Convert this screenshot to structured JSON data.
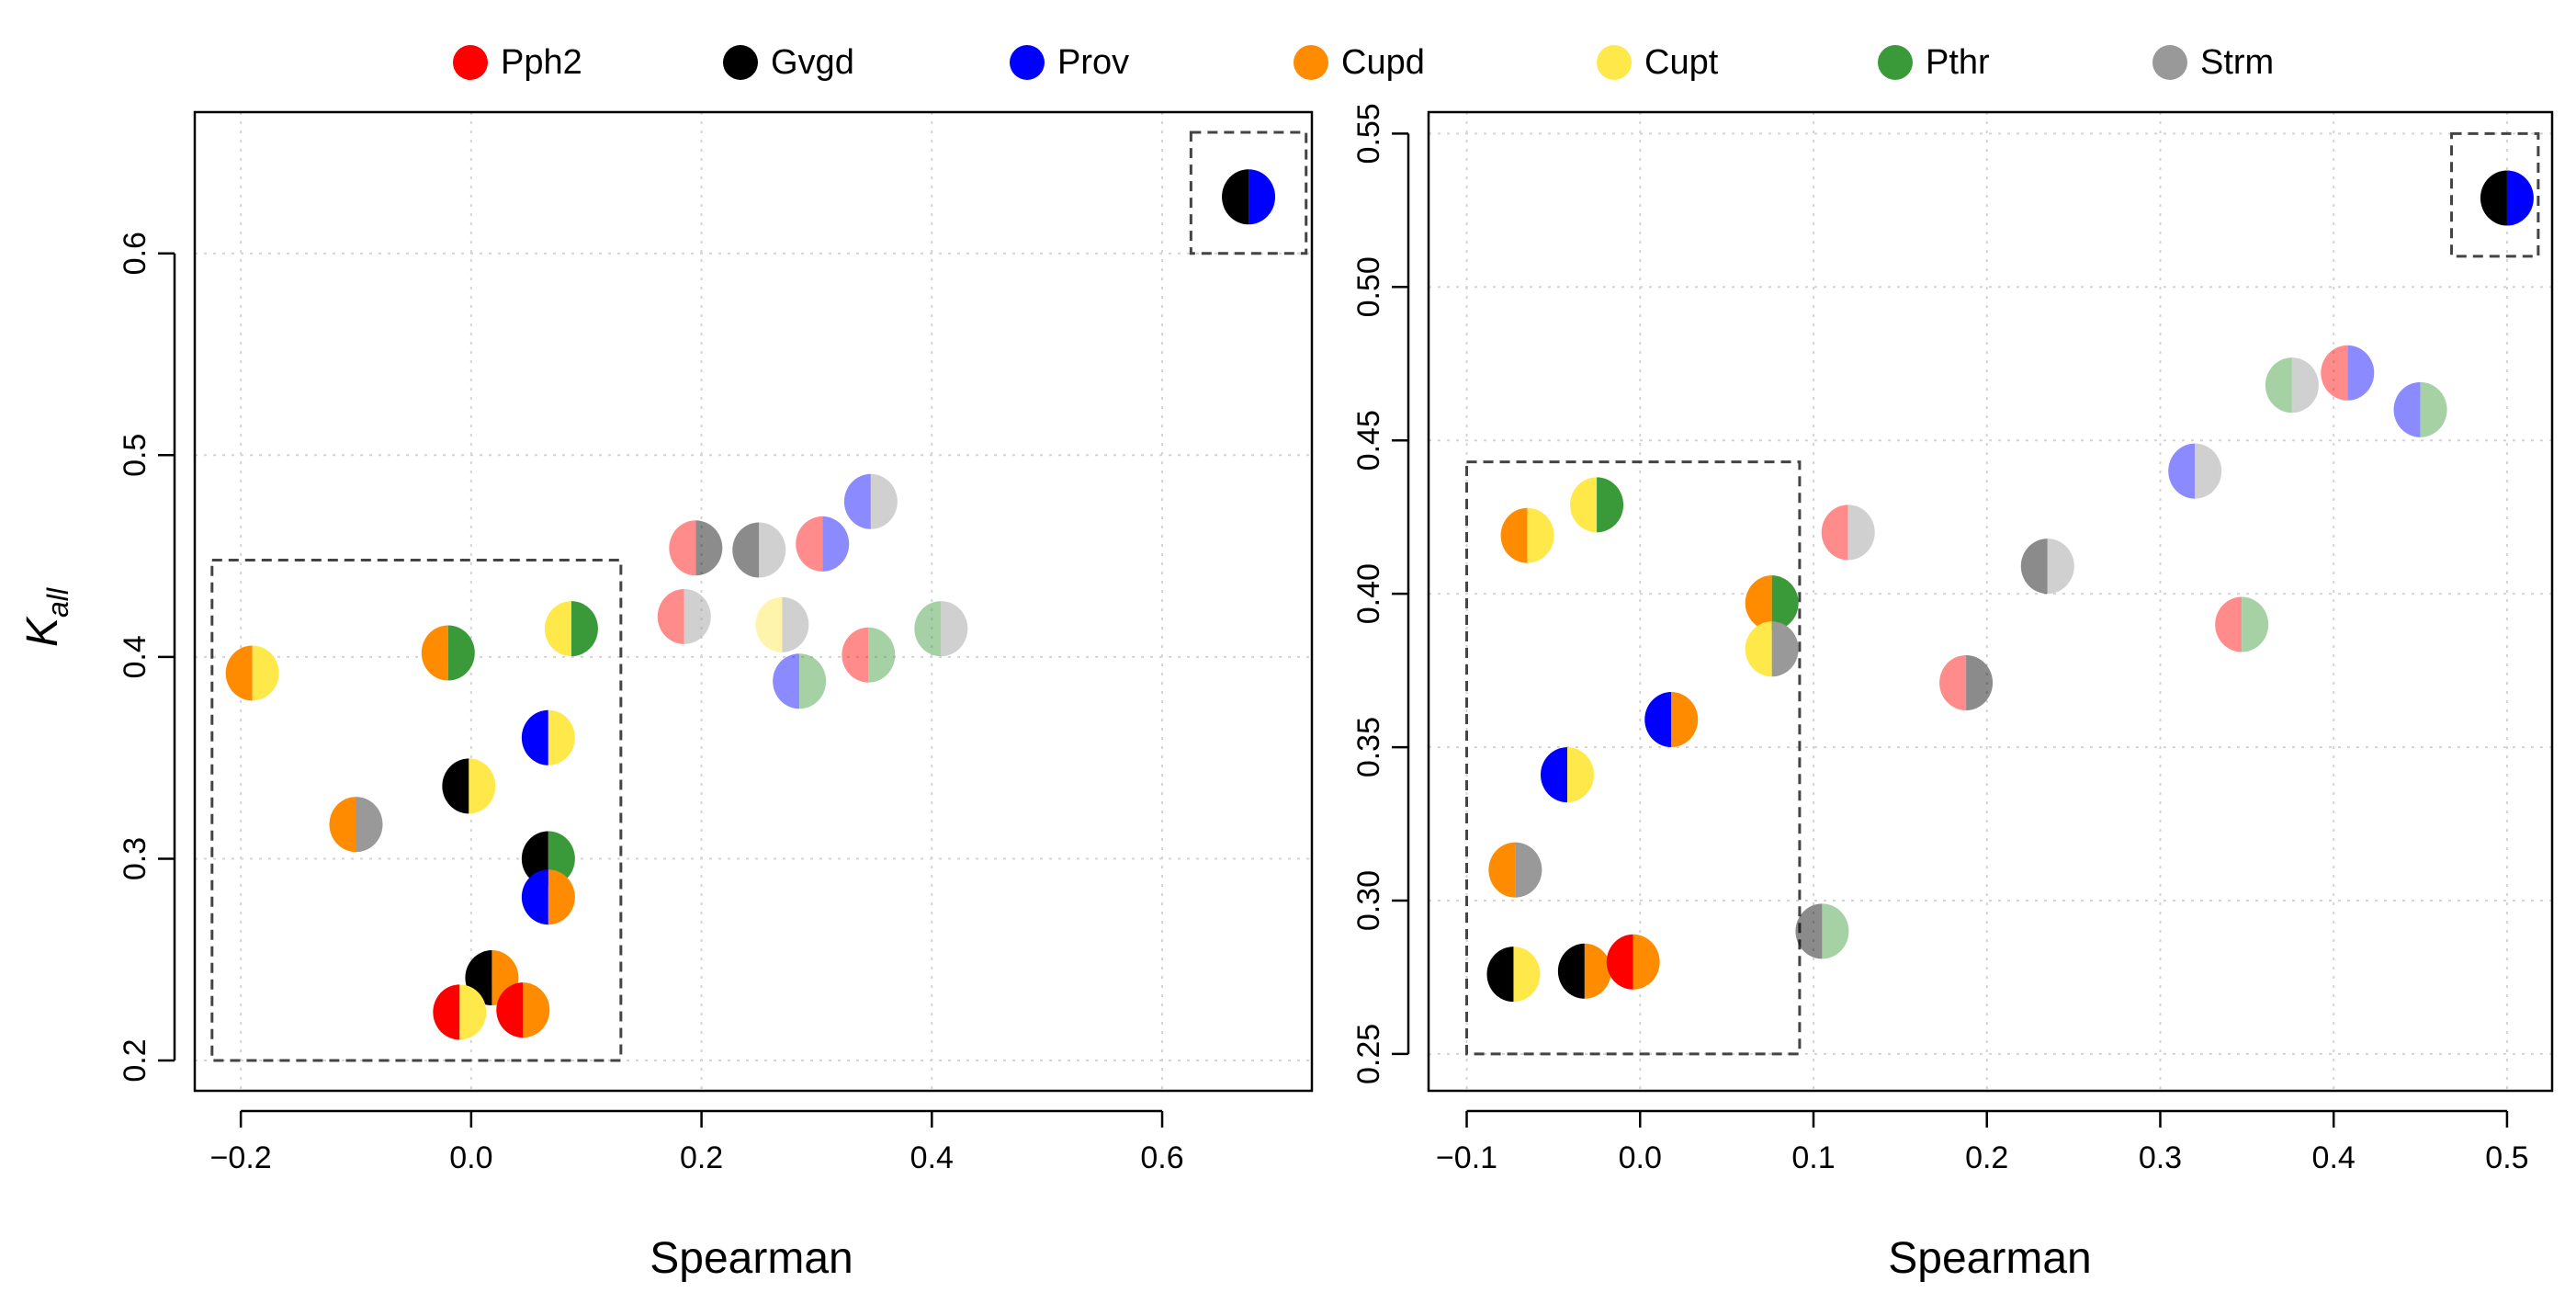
{
  "legend": [
    {
      "key": "Pph2",
      "label": "Pph2",
      "color": "#ff0000"
    },
    {
      "key": "Gvgd",
      "label": "Gvgd",
      "color": "#000000"
    },
    {
      "key": "Prov",
      "label": "Prov",
      "color": "#0000ff"
    },
    {
      "key": "Cupd",
      "label": "Cupd",
      "color": "#ff8c00"
    },
    {
      "key": "Cupt",
      "label": "Cupt",
      "color": "#ffe84a"
    },
    {
      "key": "Pthr",
      "label": "Pthr",
      "color": "#3a9a3a"
    },
    {
      "key": "Strm",
      "label": "Strm",
      "color": "#999999"
    }
  ],
  "chart_data": [
    {
      "type": "scatter",
      "title": "",
      "xlabel": "Spearman",
      "ylabel_main": "K",
      "ylabel_sub": "all",
      "xlim": [
        -0.24,
        0.73
      ],
      "ylim": [
        0.185,
        0.67
      ],
      "xticks": [
        -0.2,
        0.0,
        0.2,
        0.4,
        0.6
      ],
      "xtick_labels": [
        "−0.2",
        "0.0",
        "0.2",
        "0.4",
        "0.6"
      ],
      "yticks": [
        0.2,
        0.3,
        0.4,
        0.5,
        0.6
      ],
      "ytick_labels": [
        "0.2",
        "0.3",
        "0.4",
        "0.5",
        "0.6"
      ],
      "grid": true,
      "boxes": [
        {
          "x0": -0.225,
          "x1": 0.13,
          "y0": 0.2,
          "y1": 0.448
        },
        {
          "x0": 0.625,
          "x1": 0.725,
          "y0": 0.6,
          "y1": 0.66
        }
      ],
      "points": [
        {
          "pair": [
            "Gvgd",
            "Prov"
          ],
          "x": 0.675,
          "y": 0.628,
          "faded": false
        },
        {
          "pair": [
            "Pph2",
            "Gvgd"
          ],
          "x": 0.195,
          "y": 0.454,
          "faded": true
        },
        {
          "pair": [
            "Gvgd",
            "Strm"
          ],
          "x": 0.25,
          "y": 0.453,
          "faded": true
        },
        {
          "pair": [
            "Pph2",
            "Prov"
          ],
          "x": 0.305,
          "y": 0.456,
          "faded": true
        },
        {
          "pair": [
            "Prov",
            "Strm"
          ],
          "x": 0.347,
          "y": 0.477,
          "faded": true
        },
        {
          "pair": [
            "Pph2",
            "Strm"
          ],
          "x": 0.185,
          "y": 0.42,
          "faded": true
        },
        {
          "pair": [
            "Cupt",
            "Strm"
          ],
          "x": 0.27,
          "y": 0.416,
          "faded": true
        },
        {
          "pair": [
            "Pph2",
            "Pthr"
          ],
          "x": 0.345,
          "y": 0.401,
          "faded": true
        },
        {
          "pair": [
            "Prov",
            "Pthr"
          ],
          "x": 0.285,
          "y": 0.388,
          "faded": true
        },
        {
          "pair": [
            "Pthr",
            "Strm"
          ],
          "x": 0.408,
          "y": 0.414,
          "faded": true
        },
        {
          "pair": [
            "Cupd",
            "Cupt"
          ],
          "x": -0.19,
          "y": 0.392,
          "faded": false
        },
        {
          "pair": [
            "Cupd",
            "Pthr"
          ],
          "x": -0.02,
          "y": 0.402,
          "faded": false
        },
        {
          "pair": [
            "Cupt",
            "Pthr"
          ],
          "x": 0.087,
          "y": 0.414,
          "faded": false
        },
        {
          "pair": [
            "Prov",
            "Cupt"
          ],
          "x": 0.067,
          "y": 0.36,
          "faded": false
        },
        {
          "pair": [
            "Gvgd",
            "Cupt"
          ],
          "x": -0.002,
          "y": 0.336,
          "faded": false
        },
        {
          "pair": [
            "Cupd",
            "Strm"
          ],
          "x": -0.1,
          "y": 0.317,
          "faded": false
        },
        {
          "pair": [
            "Gvgd",
            "Pthr"
          ],
          "x": 0.067,
          "y": 0.3,
          "faded": false
        },
        {
          "pair": [
            "Prov",
            "Cupd"
          ],
          "x": 0.067,
          "y": 0.281,
          "faded": false
        },
        {
          "pair": [
            "Gvgd",
            "Cupd"
          ],
          "x": 0.018,
          "y": 0.241,
          "faded": false
        },
        {
          "pair": [
            "Pph2",
            "Cupt"
          ],
          "x": -0.01,
          "y": 0.224,
          "faded": false
        },
        {
          "pair": [
            "Pph2",
            "Cupd"
          ],
          "x": 0.045,
          "y": 0.225,
          "faded": false
        }
      ]
    },
    {
      "type": "scatter",
      "title": "",
      "xlabel": "Spearman",
      "ylabel_main": "",
      "ylabel_sub": "",
      "xlim": [
        -0.122,
        0.526
      ],
      "ylim": [
        0.238,
        0.557
      ],
      "xticks": [
        -0.1,
        0.0,
        0.1,
        0.2,
        0.3,
        0.4,
        0.5
      ],
      "xtick_labels": [
        "−0.1",
        "0.0",
        "0.1",
        "0.2",
        "0.3",
        "0.4",
        "0.5"
      ],
      "yticks": [
        0.25,
        0.3,
        0.35,
        0.4,
        0.45,
        0.5,
        0.55
      ],
      "ytick_labels": [
        "0.25",
        "0.30",
        "0.35",
        "0.40",
        "0.45",
        "0.50",
        "0.55"
      ],
      "grid": true,
      "boxes": [
        {
          "x0": -0.1,
          "x1": 0.092,
          "y0": 0.25,
          "y1": 0.443
        },
        {
          "x0": 0.468,
          "x1": 0.518,
          "y0": 0.51,
          "y1": 0.55
        }
      ],
      "points": [
        {
          "pair": [
            "Gvgd",
            "Prov"
          ],
          "x": 0.5,
          "y": 0.529,
          "faded": false
        },
        {
          "pair": [
            "Pph2",
            "Prov"
          ],
          "x": 0.408,
          "y": 0.472,
          "faded": true
        },
        {
          "pair": [
            "Pthr",
            "Strm"
          ],
          "x": 0.376,
          "y": 0.468,
          "faded": true
        },
        {
          "pair": [
            "Prov",
            "Pthr"
          ],
          "x": 0.45,
          "y": 0.46,
          "faded": true
        },
        {
          "pair": [
            "Prov",
            "Strm"
          ],
          "x": 0.32,
          "y": 0.44,
          "faded": true
        },
        {
          "pair": [
            "Pph2",
            "Strm"
          ],
          "x": 0.12,
          "y": 0.42,
          "faded": true
        },
        {
          "pair": [
            "Gvgd",
            "Strm"
          ],
          "x": 0.235,
          "y": 0.409,
          "faded": true
        },
        {
          "pair": [
            "Pph2",
            "Pthr"
          ],
          "x": 0.347,
          "y": 0.39,
          "faded": true
        },
        {
          "pair": [
            "Pph2",
            "Gvgd"
          ],
          "x": 0.188,
          "y": 0.371,
          "faded": true
        },
        {
          "pair": [
            "Gvgd",
            "Pthr"
          ],
          "x": 0.105,
          "y": 0.29,
          "faded": true
        },
        {
          "pair": [
            "Cupt",
            "Pthr"
          ],
          "x": -0.025,
          "y": 0.429,
          "faded": false
        },
        {
          "pair": [
            "Cupd",
            "Cupt"
          ],
          "x": -0.065,
          "y": 0.419,
          "faded": false
        },
        {
          "pair": [
            "Cupd",
            "Pthr"
          ],
          "x": 0.076,
          "y": 0.397,
          "faded": false
        },
        {
          "pair": [
            "Cupt",
            "Strm"
          ],
          "x": 0.076,
          "y": 0.382,
          "faded": false
        },
        {
          "pair": [
            "Prov",
            "Cupd"
          ],
          "x": 0.018,
          "y": 0.359,
          "faded": false
        },
        {
          "pair": [
            "Prov",
            "Cupt"
          ],
          "x": -0.042,
          "y": 0.341,
          "faded": false
        },
        {
          "pair": [
            "Cupd",
            "Strm"
          ],
          "x": -0.072,
          "y": 0.31,
          "faded": false
        },
        {
          "pair": [
            "Gvgd",
            "Cupt"
          ],
          "x": -0.073,
          "y": 0.276,
          "faded": false
        },
        {
          "pair": [
            "Gvgd",
            "Cupd"
          ],
          "x": -0.032,
          "y": 0.277,
          "faded": false
        },
        {
          "pair": [
            "Pph2",
            "Cupd"
          ],
          "x": -0.004,
          "y": 0.28,
          "faded": false
        }
      ]
    }
  ]
}
